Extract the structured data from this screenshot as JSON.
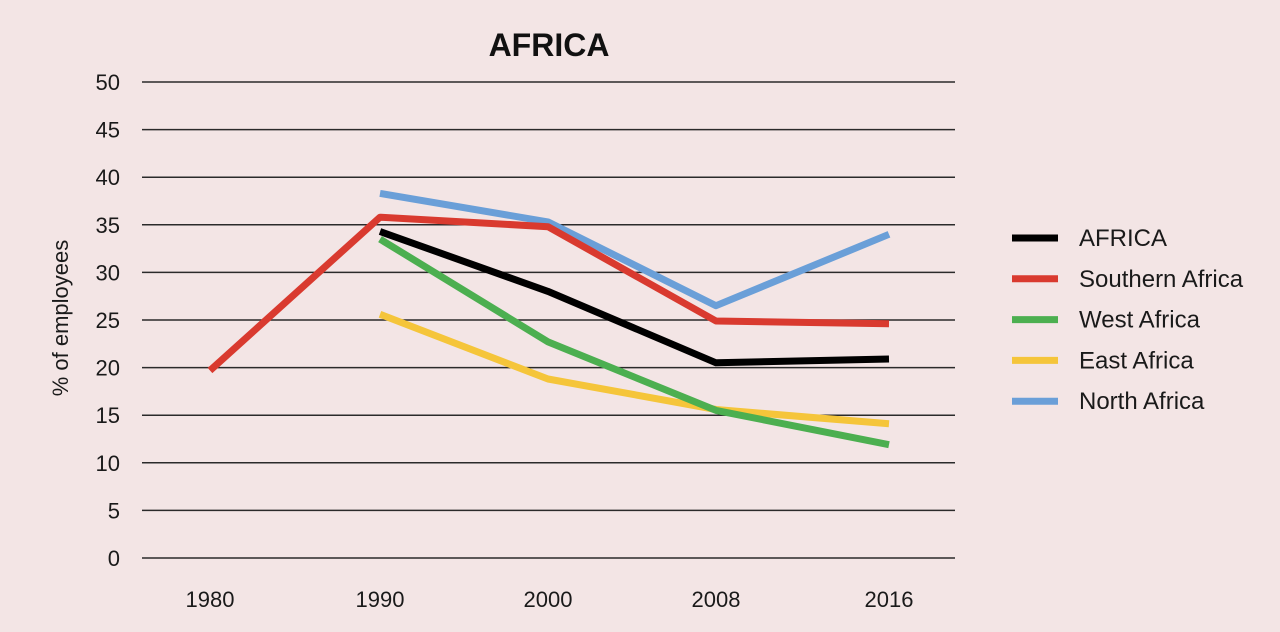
{
  "chart_data": {
    "type": "line",
    "title": "AFRICA",
    "xlabel": "",
    "ylabel": "% of employees",
    "categories": [
      "1980",
      "1990",
      "2000",
      "2008",
      "2016"
    ],
    "yticks": [
      "0",
      "5",
      "10",
      "15",
      "20",
      "25",
      "30",
      "35",
      "40",
      "45",
      "50"
    ],
    "ylim": [
      0,
      50
    ],
    "grid": true,
    "legend_position": "right",
    "series": [
      {
        "name": "AFRICA",
        "color": "#000000",
        "values": [
          null,
          34.3,
          28.0,
          20.5,
          20.9
        ]
      },
      {
        "name": "Southern Africa",
        "color": "#d93a2f",
        "values": [
          19.7,
          35.8,
          34.8,
          24.9,
          24.6
        ]
      },
      {
        "name": "West Africa",
        "color": "#4caf50",
        "values": [
          null,
          33.5,
          22.7,
          15.5,
          11.9
        ]
      },
      {
        "name": "East Africa",
        "color": "#f5c53a",
        "values": [
          null,
          25.6,
          18.8,
          15.6,
          14.1
        ]
      },
      {
        "name": "North Africa",
        "color": "#6a9fd8",
        "values": [
          null,
          38.3,
          35.3,
          26.5,
          34.0
        ]
      }
    ]
  }
}
